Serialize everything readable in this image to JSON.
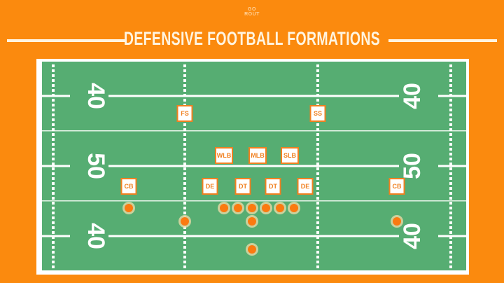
{
  "logo": {
    "text_line1": "GO",
    "text_line2": "ROUT"
  },
  "title": "DEFENSIVE FOOTBALL FORMATIONS",
  "colors": {
    "background": "#fb8a0e",
    "field": "#56ad72",
    "lines": "#ffffff",
    "player": "#fb7a10"
  },
  "yard_numbers": {
    "left": [
      "40",
      "50",
      "40"
    ],
    "right": [
      "40",
      "50",
      "40"
    ]
  },
  "positions": [
    {
      "label": "FS"
    },
    {
      "label": "SS"
    },
    {
      "label": "WLB"
    },
    {
      "label": "MLB"
    },
    {
      "label": "SLB"
    },
    {
      "label": "CB"
    },
    {
      "label": "DE"
    },
    {
      "label": "DT"
    },
    {
      "label": "DT"
    },
    {
      "label": "DE"
    },
    {
      "label": "CB"
    }
  ],
  "player_dot_count": 11
}
